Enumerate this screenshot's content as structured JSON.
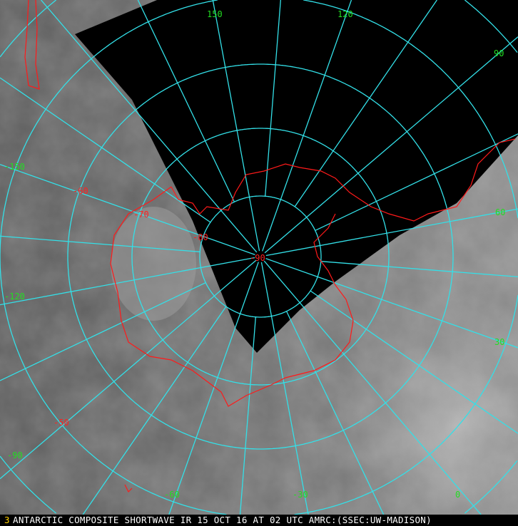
{
  "map": {
    "caption": "ANTARCTIC COMPOSITE SHORTWAVE IR 15 OCT 16 AT 02 UTC AMRC:(SSEC:UW-MADISON)",
    "caption_marker": "3",
    "colors": {
      "grid": "#33e0e8",
      "coast": "#ff1a1a",
      "lon_label": "#22dd22",
      "lat_label": "#ff2020",
      "no_data": "#000000"
    },
    "longitude_labels": [
      "150",
      "120",
      "90",
      "60",
      "30",
      "0",
      "-30",
      "-60",
      "-90",
      "-120",
      "-150"
    ],
    "latitude_labels": [
      "-90",
      "-80",
      "-70",
      "-60",
      "-50"
    ]
  }
}
